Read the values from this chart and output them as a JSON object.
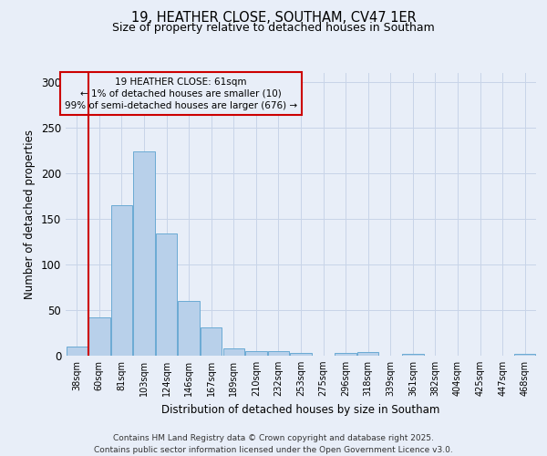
{
  "title1": "19, HEATHER CLOSE, SOUTHAM, CV47 1ER",
  "title2": "Size of property relative to detached houses in Southam",
  "xlabel": "Distribution of detached houses by size in Southam",
  "ylabel": "Number of detached properties",
  "categories": [
    "38sqm",
    "60sqm",
    "81sqm",
    "103sqm",
    "124sqm",
    "146sqm",
    "167sqm",
    "189sqm",
    "210sqm",
    "232sqm",
    "253sqm",
    "275sqm",
    "296sqm",
    "318sqm",
    "339sqm",
    "361sqm",
    "382sqm",
    "404sqm",
    "425sqm",
    "447sqm",
    "468sqm"
  ],
  "values": [
    10,
    42,
    165,
    224,
    134,
    60,
    31,
    8,
    5,
    5,
    3,
    0,
    3,
    4,
    0,
    2,
    0,
    0,
    0,
    0,
    2
  ],
  "bar_color": "#b8d0ea",
  "bar_edge_color": "#6aaad4",
  "grid_color": "#c8d4e8",
  "background_color": "#e8eef8",
  "vline_x": 0.5,
  "vline_color": "#cc0000",
  "annotation_text": "19 HEATHER CLOSE: 61sqm\n← 1% of detached houses are smaller (10)\n99% of semi-detached houses are larger (676) →",
  "annotation_box_color": "#cc0000",
  "footer_text": "Contains HM Land Registry data © Crown copyright and database right 2025.\nContains public sector information licensed under the Open Government Licence v3.0.",
  "ylim": [
    0,
    310
  ],
  "yticks": [
    0,
    50,
    100,
    150,
    200,
    250,
    300
  ]
}
